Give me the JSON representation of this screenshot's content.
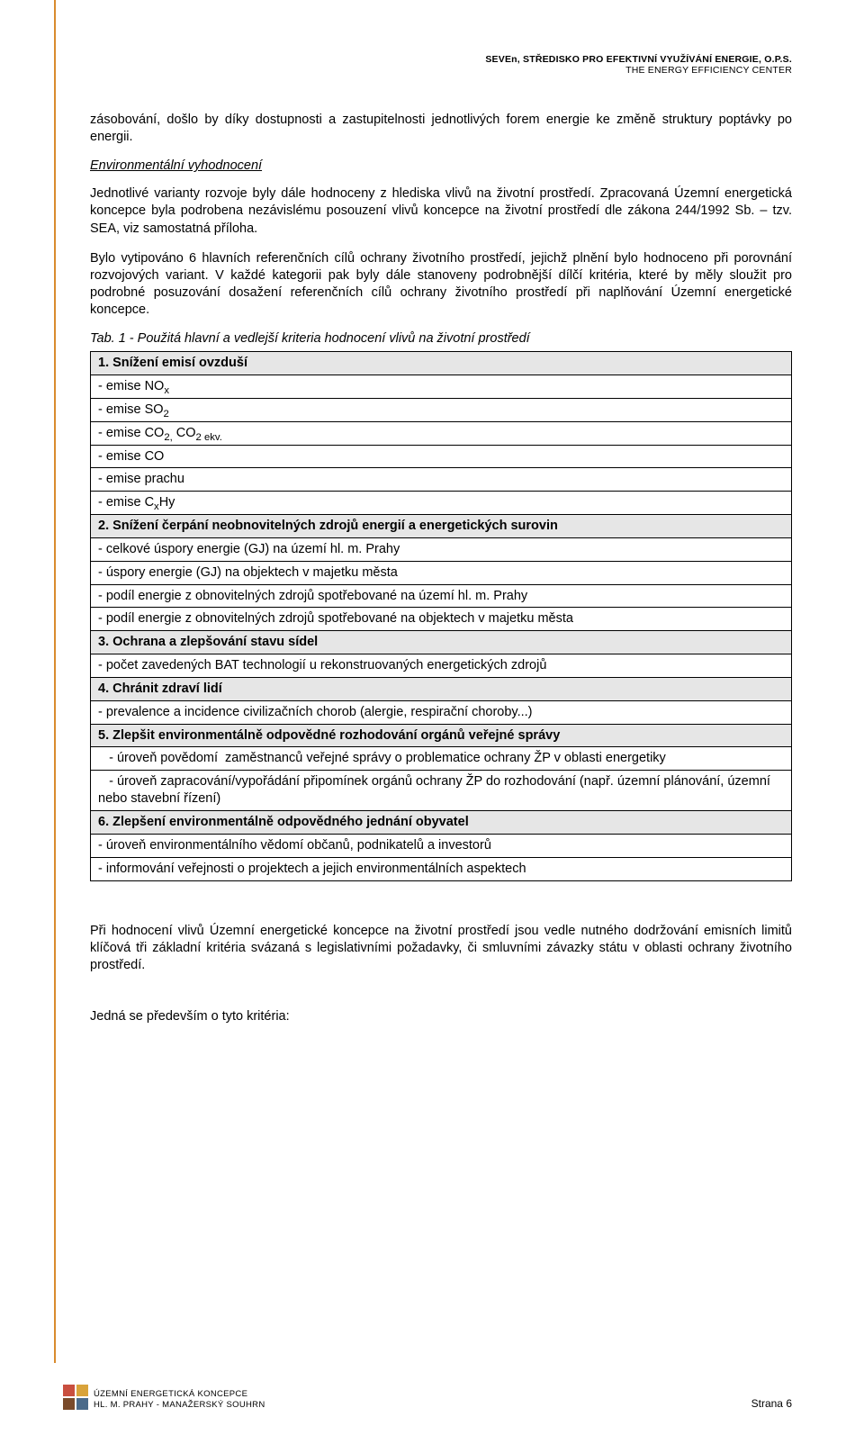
{
  "header": {
    "line1": "SEVEn, STŘEDISKO PRO EFEKTIVNÍ VYUŽÍVÁNÍ ENERGIE, O.P.S.",
    "line2": "THE ENERGY EFFICIENCY CENTER"
  },
  "paragraphs": {
    "p1": "zásobování, došlo by díky dostupnosti a zastupitelnosti jednotlivých forem energie ke změně struktury poptávky po energii.",
    "p2_title": "Environmentální vyhodnocení",
    "p3": "Jednotlivé varianty rozvoje byly dále hodnoceny z hlediska vlivů na životní prostředí. Zpracovaná Územní energetická koncepce byla podrobena nezávislému posouzení vlivů koncepce na životní prostředí dle zákona 244/1992 Sb. – tzv. SEA, viz samostatná příloha.",
    "p4": "Bylo vytipováno 6 hlavních referenčních cílů ochrany životního prostředí, jejichž plnění bylo hodnoceno při porovnání rozvojových variant.  V každé kategorii pak byly dále stanoveny podrobnější dílčí kritéria, které by měly sloužit pro podrobné posuzování dosažení referenčních cílů ochrany životního prostředí při naplňování Územní energetické koncepce.",
    "tab_caption": "Tab. 1 -  Použitá hlavní a vedlejší kriteria hodnocení vlivů na životní prostředí",
    "p5": "Při hodnocení vlivů Územní energetické koncepce na životní prostředí jsou vedle nutného dodržování emisních limitů klíčová tři základní kritéria svázaná s legislativními požadavky, či smluvními závazky státu v oblasti ochrany životního prostředí.",
    "p6": "Jedná se především o tyto kritéria:"
  },
  "table": {
    "sections": [
      {
        "head": "1. Snížení emisí ovzduší",
        "items_html": [
          "- emise NO<span class=\"sub\">x</span>",
          "- emise SO<span class=\"sub\">2</span>",
          "- emise CO<span class=\"sub\">2,</span> CO<span class=\"sub\">2 ekv.</span>",
          "- emise CO",
          "- emise prachu",
          "- emise C<span class=\"sub\">x</span>Hy"
        ]
      },
      {
        "head": "2. Snížení čerpání neobnovitelných zdrojů energií a energetických surovin",
        "items_html": [
          "- celkové úspory energie (GJ) na území hl. m. Prahy",
          "- úspory energie  (GJ) na objektech v majetku města",
          "- podíl energie z obnovitelných zdrojů spotřebované na území hl. m. Prahy",
          "- podíl energie z obnovitelných zdrojů spotřebované na objektech v majetku města"
        ]
      },
      {
        "head": "3. Ochrana a zlepšování stavu sídel",
        "items_html": [
          "- počet zavedených BAT technologií u rekonstruovaných energetických zdrojů"
        ]
      },
      {
        "head": "4. Chránit  zdraví lidí",
        "items_html": [
          "- prevalence a incidence civilizačních chorob (alergie, respirační choroby...)"
        ]
      },
      {
        "head": "5. Zlepšit environmentálně odpovědné rozhodování orgánů veřejné správy",
        "items_html": [
          "&nbsp;&nbsp;&nbsp;- úroveň povědomí&nbsp;&nbsp;zaměstnanců veřejné správy o problematice ochrany ŽP v oblasti energetiky",
          "&nbsp;&nbsp;&nbsp;- úroveň zapracování/vypořádání připomínek orgánů ochrany ŽP do rozhodování (např. územní plánování, územní nebo stavební řízení)"
        ]
      },
      {
        "head": "6. Zlepšení environmentálně odpovědného jednání obyvatel",
        "items_html": [
          "- úroveň environmentálního vědomí občanů,  podnikatelů a investorů",
          "- informování veřejnosti o projektech a jejich environmentálních aspektech"
        ]
      }
    ]
  },
  "footer": {
    "line1": "ÚZEMNÍ ENERGETICKÁ KONCEPCE",
    "line2": "HL. M. PRAHY - MANAŽERSKÝ SOUHRN",
    "page": "Strana 6",
    "logo_colors": {
      "c1": "#c94f3f",
      "c2": "#d9a33a",
      "c3": "#7a4a2a",
      "c4": "#4a6a8a"
    }
  },
  "colors": {
    "rule": "#d98b2e",
    "section_bg": "#e6e6e6",
    "text": "#000000",
    "page_bg": "#ffffff"
  }
}
